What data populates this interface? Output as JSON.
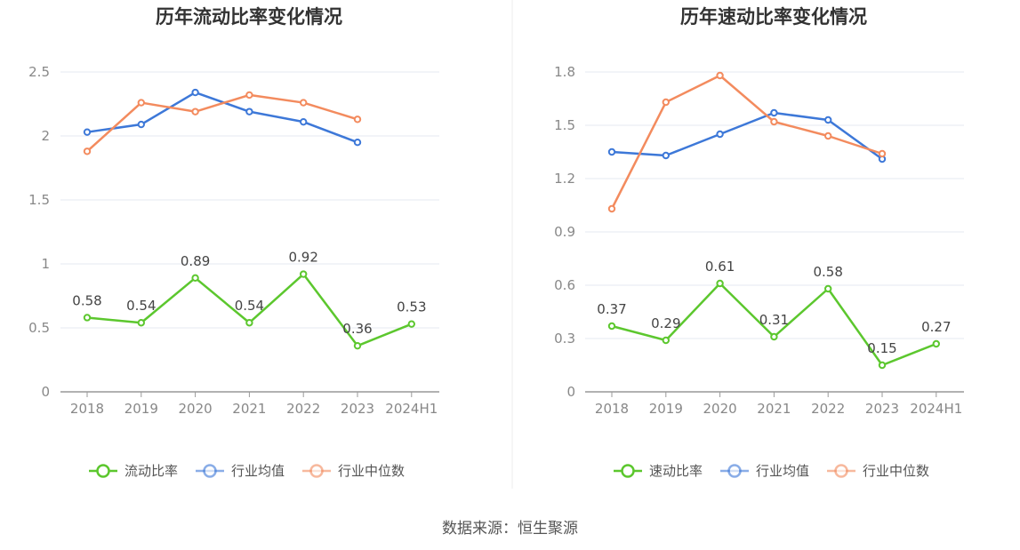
{
  "chart_data": [
    {
      "type": "line",
      "title": "历年流动比率变化情况",
      "categories": [
        "2018",
        "2019",
        "2020",
        "2021",
        "2022",
        "2023",
        "2024H1"
      ],
      "ylim": [
        0,
        2.5
      ],
      "yticks": [
        "0",
        "0.5",
        "1",
        "1.5",
        "2",
        "2.5"
      ],
      "grid": true,
      "legend_position": "bottom",
      "series": [
        {
          "name": "流动比率",
          "color": "#5cc72e",
          "values": [
            0.58,
            0.54,
            0.89,
            0.54,
            0.92,
            0.36,
            0.53
          ],
          "labeled": true
        },
        {
          "name": "行业均值",
          "color": "#3d78d8",
          "values": [
            2.03,
            2.09,
            2.34,
            2.19,
            2.11,
            1.95,
            null
          ],
          "labeled": false
        },
        {
          "name": "行业中位数",
          "color": "#f38b5e",
          "values": [
            1.88,
            2.26,
            2.19,
            2.32,
            2.26,
            2.13,
            null
          ],
          "labeled": false
        }
      ],
      "data_labels": [
        "0.58",
        "0.54",
        "0.89",
        "0.54",
        "0.92",
        "0.36",
        "0.53"
      ]
    },
    {
      "type": "line",
      "title": "历年速动比率变化情况",
      "categories": [
        "2018",
        "2019",
        "2020",
        "2021",
        "2022",
        "2023",
        "2024H1"
      ],
      "ylim": [
        0,
        1.8
      ],
      "yticks": [
        "0",
        "0.3",
        "0.6",
        "0.9",
        "1.2",
        "1.5",
        "1.8"
      ],
      "grid": true,
      "legend_position": "bottom",
      "series": [
        {
          "name": "速动比率",
          "color": "#5cc72e",
          "values": [
            0.37,
            0.29,
            0.61,
            0.31,
            0.58,
            0.15,
            0.27
          ],
          "labeled": true
        },
        {
          "name": "行业均值",
          "color": "#3d78d8",
          "values": [
            1.35,
            1.33,
            1.45,
            1.57,
            1.53,
            1.31,
            null
          ],
          "labeled": false
        },
        {
          "name": "行业中位数",
          "color": "#f38b5e",
          "values": [
            1.03,
            1.63,
            1.78,
            1.52,
            1.44,
            1.34,
            null
          ],
          "labeled": false
        }
      ],
      "data_labels": [
        "0.37",
        "0.29",
        "0.61",
        "0.31",
        "0.58",
        "0.15",
        "0.27"
      ]
    }
  ],
  "footer": {
    "source": "数据来源：恒生聚源"
  }
}
